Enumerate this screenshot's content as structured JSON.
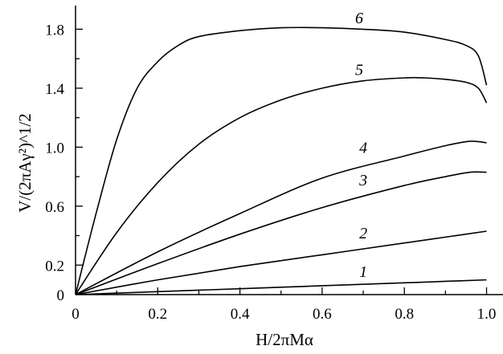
{
  "chart_data": {
    "type": "line",
    "xlabel": "H/2πMα",
    "ylabel": "V/(2πAγ²)^1/2",
    "xlim": [
      0,
      1.04
    ],
    "ylim": [
      0,
      1.96
    ],
    "x_ticks": [
      {
        "value": 0,
        "label": "0"
      },
      {
        "value": 0.2,
        "label": "0.2"
      },
      {
        "value": 0.4,
        "label": "0.4"
      },
      {
        "value": 0.6,
        "label": "0.6"
      },
      {
        "value": 0.8,
        "label": "0.8"
      },
      {
        "value": 1.0,
        "label": "1.0"
      }
    ],
    "y_ticks": [
      {
        "value": 0,
        "label": "0"
      },
      {
        "value": 0.2,
        "label": "0.2"
      },
      {
        "value": 0.6,
        "label": "0.6"
      },
      {
        "value": 1.0,
        "label": "1.0"
      },
      {
        "value": 1.4,
        "label": "1.4"
      },
      {
        "value": 1.8,
        "label": "1.8"
      }
    ],
    "grid": false,
    "legend": "none",
    "series": [
      {
        "name": "1",
        "x": [
          0,
          0.2,
          0.4,
          0.6,
          0.8,
          0.9,
          1.0
        ],
        "y": [
          0,
          0.02,
          0.04,
          0.06,
          0.08,
          0.09,
          0.1
        ],
        "label_at": [
          0.7,
          0.12
        ]
      },
      {
        "name": "2",
        "x": [
          0,
          0.2,
          0.4,
          0.6,
          0.8,
          0.9,
          1.0
        ],
        "y": [
          0,
          0.1,
          0.19,
          0.27,
          0.35,
          0.39,
          0.43
        ],
        "label_at": [
          0.7,
          0.38
        ]
      },
      {
        "name": "3",
        "x": [
          0,
          0.2,
          0.4,
          0.6,
          0.8,
          0.9,
          0.96,
          1.0
        ],
        "y": [
          0,
          0.21,
          0.41,
          0.59,
          0.74,
          0.8,
          0.83,
          0.83
        ],
        "label_at": [
          0.7,
          0.74
        ]
      },
      {
        "name": "4",
        "x": [
          0,
          0.2,
          0.4,
          0.6,
          0.8,
          0.9,
          0.96,
          1.0
        ],
        "y": [
          0,
          0.29,
          0.55,
          0.79,
          0.94,
          1.01,
          1.04,
          1.03
        ],
        "label_at": [
          0.7,
          0.96
        ]
      },
      {
        "name": "5",
        "x": [
          0,
          0.1,
          0.2,
          0.3,
          0.4,
          0.5,
          0.6,
          0.7,
          0.8,
          0.85,
          0.9,
          0.95,
          0.98,
          1.0
        ],
        "y": [
          0,
          0.42,
          0.76,
          1.02,
          1.2,
          1.32,
          1.4,
          1.45,
          1.47,
          1.47,
          1.46,
          1.44,
          1.4,
          1.3
        ],
        "label_at": [
          0.69,
          1.49
        ]
      },
      {
        "name": "6",
        "x": [
          0,
          0.05,
          0.1,
          0.15,
          0.2,
          0.25,
          0.3,
          0.4,
          0.5,
          0.6,
          0.7,
          0.8,
          0.9,
          0.95,
          0.98,
          1.0
        ],
        "y": [
          0,
          0.55,
          1.05,
          1.4,
          1.58,
          1.69,
          1.75,
          1.79,
          1.81,
          1.81,
          1.8,
          1.78,
          1.73,
          1.69,
          1.62,
          1.42
        ],
        "label_at": [
          0.69,
          1.84
        ]
      }
    ]
  }
}
